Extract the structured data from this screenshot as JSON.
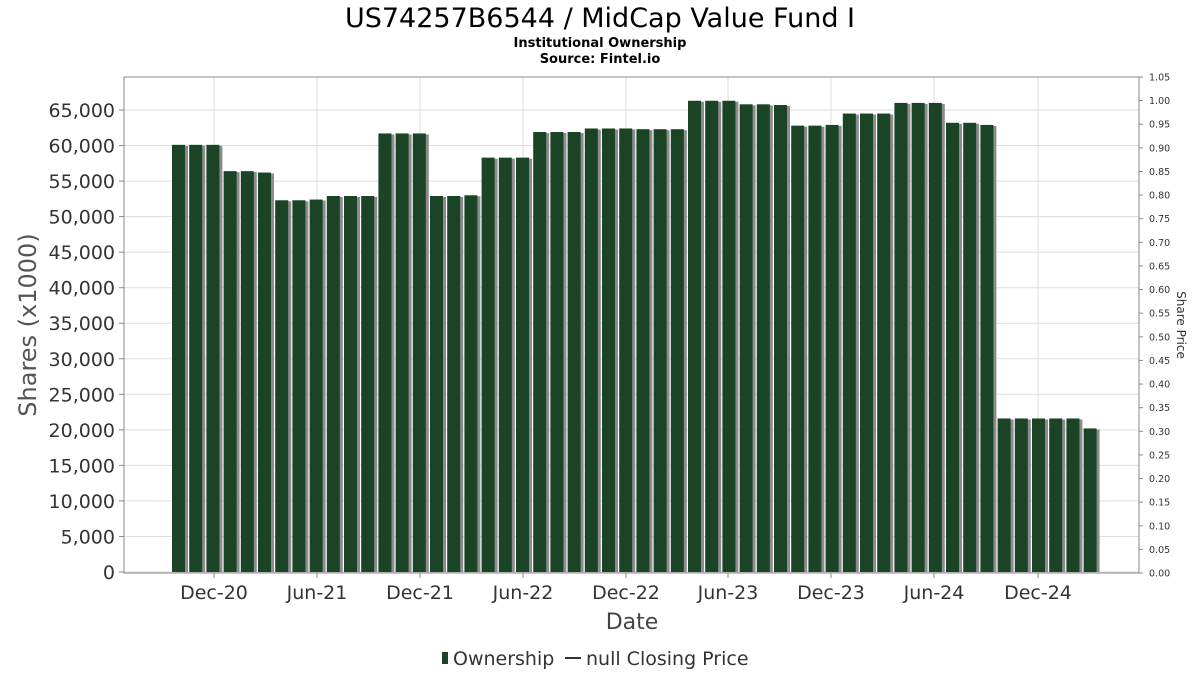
{
  "title": "US74257B6544 / MidCap Value Fund I",
  "subtitle": "Institutional Ownership",
  "source": "Source: Fintel.io",
  "legend": {
    "ownership_label": "Ownership",
    "price_label": "null Closing Price"
  },
  "colors": {
    "bar": "#1b4325",
    "bar_shadow": "#8c8c8c",
    "grid": "#dddddd",
    "plot_border": "#888888"
  },
  "chart_data": {
    "type": "bar",
    "title": "US74257B6544 / MidCap Value Fund I",
    "subtitle": "Institutional Ownership",
    "xlabel": "Date",
    "ylabel": "Shares (x1000)",
    "y2label": "Share Price",
    "ylim": [
      0,
      70000
    ],
    "y2lim": [
      0,
      1.05
    ],
    "grid": true,
    "legend_position": "bottom",
    "x_ticks": [
      "Dec-20",
      "Jun-21",
      "Dec-21",
      "Jun-22",
      "Dec-22",
      "Jun-23",
      "Dec-23",
      "Jun-24",
      "Dec-24"
    ],
    "y_ticks": [
      "0",
      "5,000",
      "10,000",
      "15,000",
      "20,000",
      "25,000",
      "30,000",
      "35,000",
      "40,000",
      "45,000",
      "50,000",
      "55,000",
      "60,000",
      "65,000"
    ],
    "y2_ticks": [
      "0.00",
      "0.05",
      "0.10",
      "0.15",
      "0.20",
      "0.25",
      "0.30",
      "0.35",
      "0.40",
      "0.45",
      "0.50",
      "0.55",
      "0.60",
      "0.65",
      "0.70",
      "0.75",
      "0.80",
      "0.85",
      "0.90",
      "0.95",
      "1.00",
      "1.05"
    ],
    "series": [
      {
        "name": "Ownership",
        "values": [
          60100,
          60100,
          60100,
          56400,
          56400,
          56200,
          52300,
          52300,
          52400,
          52900,
          52900,
          52900,
          61700,
          61700,
          61700,
          52900,
          52900,
          53000,
          58300,
          58300,
          58300,
          61900,
          61900,
          61900,
          62400,
          62400,
          62400,
          62300,
          62300,
          62300,
          66300,
          66300,
          66300,
          65800,
          65800,
          65700,
          62800,
          62800,
          62900,
          64500,
          64500,
          64500,
          66000,
          66000,
          66000,
          63200,
          63200,
          62900,
          21600,
          21600,
          21600,
          21600,
          21600,
          20200
        ]
      }
    ]
  }
}
